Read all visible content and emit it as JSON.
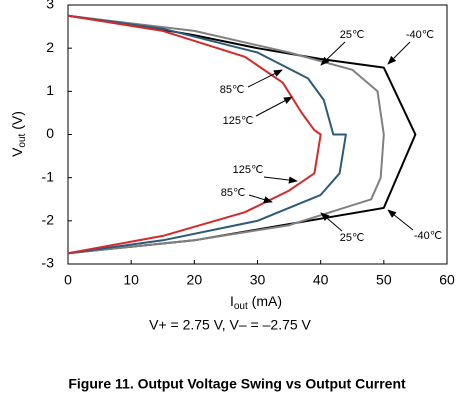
{
  "chart_data": {
    "type": "line",
    "xlabel_parts": [
      "I",
      "out",
      " (mA)"
    ],
    "ylabel_parts": [
      "V",
      "out",
      " (V)"
    ],
    "subtitle": "V+ = 2.75 V, V– = –2.75 V",
    "caption": "Figure 11. Output Voltage Swing vs Output Current",
    "xlim": [
      0,
      60
    ],
    "xticks": [
      0,
      10,
      20,
      30,
      40,
      50,
      60
    ],
    "ylim": [
      -3,
      3
    ],
    "yticks": [
      -3,
      -2,
      -1,
      0,
      1,
      2,
      3
    ],
    "grid": false,
    "series": [
      {
        "name": "-40℃",
        "color": "#000000",
        "x": [
          0,
          10,
          20,
          30,
          40,
          50,
          55,
          50,
          40,
          30,
          20,
          10,
          0
        ],
        "values": [
          2.75,
          2.55,
          2.3,
          2.0,
          1.75,
          1.55,
          0,
          -1.7,
          -1.95,
          -2.2,
          -2.45,
          -2.6,
          -2.75
        ]
      },
      {
        "name": "25℃",
        "color": "#808080",
        "x": [
          0,
          20,
          35,
          45,
          49,
          50,
          49.5,
          48,
          35,
          20,
          0
        ],
        "values": [
          2.75,
          2.4,
          1.9,
          1.5,
          1.0,
          0,
          -1.0,
          -1.5,
          -2.1,
          -2.45,
          -2.75
        ]
      },
      {
        "name": "85℃",
        "color": "#2e5a7a",
        "x": [
          0,
          15,
          30,
          38,
          40.5,
          42,
          44,
          43,
          40,
          30,
          15,
          0
        ],
        "values": [
          2.75,
          2.45,
          1.9,
          1.3,
          0.8,
          0,
          0,
          -0.9,
          -1.4,
          -2.0,
          -2.45,
          -2.75
        ]
      },
      {
        "name": "125℃",
        "color": "#d42a2a",
        "x": [
          0,
          15,
          28,
          34,
          37,
          39,
          40,
          39,
          35,
          28,
          15,
          0
        ],
        "values": [
          2.75,
          2.4,
          1.8,
          1.2,
          0.5,
          0.1,
          0,
          -0.9,
          -1.3,
          -1.8,
          -2.35,
          -2.75
        ]
      }
    ]
  }
}
